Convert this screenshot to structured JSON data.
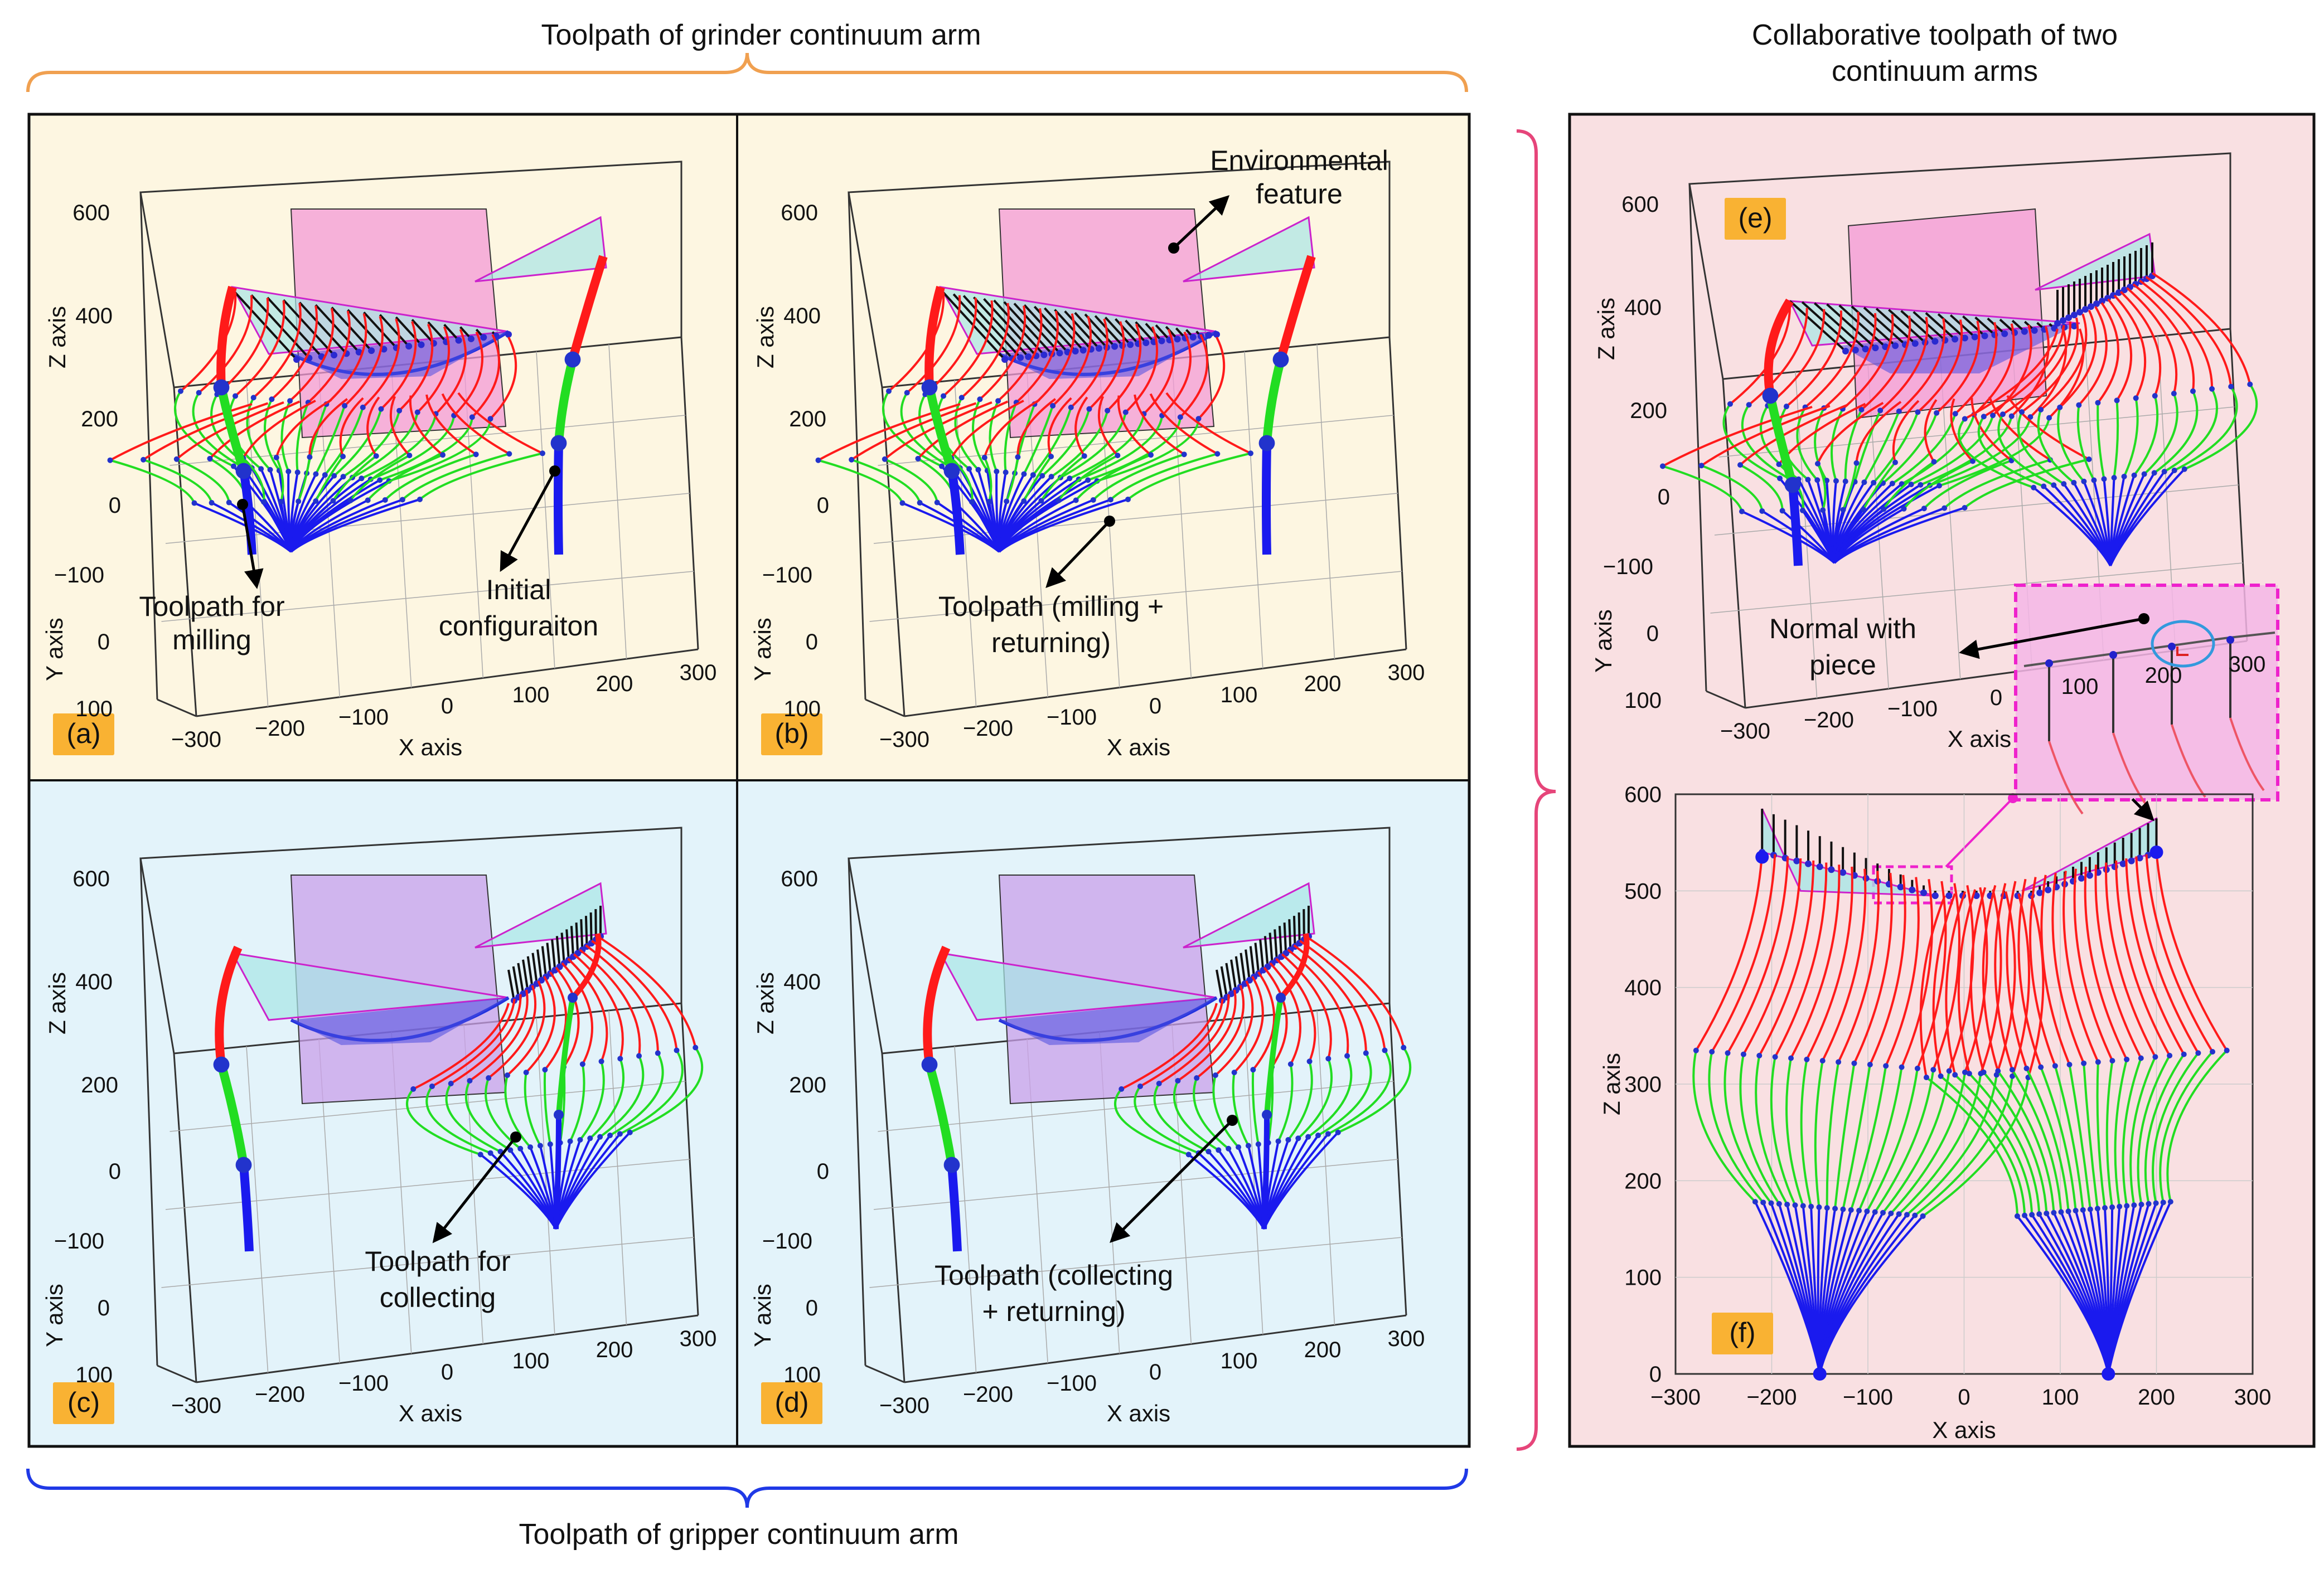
{
  "headers": {
    "grinder": "Toolpath of grinder continuum arm",
    "collab_line1": "Collaborative toolpath of two",
    "collab_line2": "continuum arms",
    "gripper": "Toolpath of gripper continuum arm"
  },
  "axis_labels": {
    "x": "X axis",
    "y": "Y axis",
    "z": "Z axis"
  },
  "ticks_3d": {
    "x": [
      "−300",
      "−200",
      "−100",
      "0",
      "100",
      "200",
      "300"
    ],
    "y": [
      "−100",
      "0",
      "100"
    ],
    "z": [
      "0",
      "200",
      "400",
      "600"
    ]
  },
  "ticks_f": {
    "x": [
      "−300",
      "−200",
      "−100",
      "0",
      "100",
      "200",
      "300"
    ],
    "z": [
      "0",
      "100",
      "200",
      "300",
      "400",
      "500",
      "600"
    ]
  },
  "panels": {
    "a": {
      "tag": "(a)",
      "notes": [
        "Toolpath for",
        "milling",
        "Initial",
        "configuraiton"
      ]
    },
    "b": {
      "tag": "(b)",
      "notes": [
        "Environmental",
        "feature",
        "Toolpath (milling +",
        "returning)"
      ]
    },
    "c": {
      "tag": "(c)",
      "notes": [
        "Toolpath for",
        "collecting"
      ]
    },
    "d": {
      "tag": "(d)",
      "notes": [
        "Toolpath (collecting",
        "+ returning)"
      ]
    },
    "e": {
      "tag": "(e)",
      "notes": [
        "Normal with",
        "piece"
      ]
    },
    "f": {
      "tag": "(f)"
    }
  },
  "colors": {
    "panel_yellow": "#fdf6e1",
    "panel_blue": "#e3f3fa",
    "panel_pink": "#f9e0e2",
    "tag_fill": "#f9b233",
    "brace_orange": "#f0a050",
    "brace_blue": "#1f39e6",
    "brace_pink": "#e6457a",
    "seg_red": "#ff1a1a",
    "seg_green": "#22dd22",
    "seg_blue": "#1a1aee",
    "plane": "#f39ad6",
    "plane_purple": "#c9a0ea",
    "cyan_tri": "#a8e6e6",
    "zoom_border": "#ee22cc"
  }
}
